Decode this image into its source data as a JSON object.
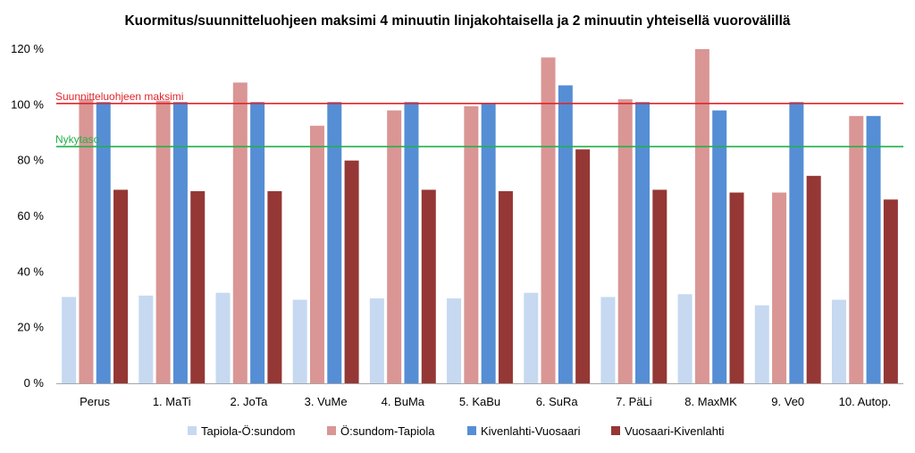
{
  "chart_data": {
    "type": "bar",
    "title": "Kuormitus/suunnitteluohjeen maksimi 4 minuutin linjakohtaisella ja 2 minuutin yhteisellä vuorovälillä",
    "xlabel": "",
    "ylabel": "",
    "ylim": [
      0,
      120
    ],
    "yticks": [
      "0 %",
      "20 %",
      "40 %",
      "60 %",
      "80 %",
      "100 %",
      "120 %"
    ],
    "grid": false,
    "legend_position": "bottom",
    "categories": [
      "Perus",
      "1. MaTi",
      "2. JoTa",
      "3. VuMe",
      "4. BuMa",
      "5. KaBu",
      "6. SuRa",
      "7. PäLi",
      "8. MaxMK",
      "9. Ve0",
      "10. Autop."
    ],
    "series": [
      {
        "name": "Tapiola-Ö:sundom",
        "color": "#c6d9f1",
        "values": [
          31,
          31.5,
          32.5,
          30,
          30.5,
          30.5,
          32.5,
          31,
          32,
          28,
          30
        ]
      },
      {
        "name": "Ö:sundom-Tapiola",
        "color": "#d99694",
        "values": [
          102,
          101.5,
          108,
          92.5,
          98,
          99.5,
          117,
          102,
          120,
          68.5,
          96
        ]
      },
      {
        "name": "Kivenlahti-Vuosaari",
        "color": "#558ed5",
        "values": [
          101,
          101,
          101,
          101,
          101,
          100.5,
          107,
          101,
          98,
          101,
          96
        ]
      },
      {
        "name": "Vuosaari-Kivenlahti",
        "color": "#953735",
        "values": [
          69.5,
          69,
          69,
          80,
          69.5,
          69,
          84,
          69.5,
          68.5,
          74.5,
          66
        ]
      }
    ],
    "reference_lines": [
      {
        "label": "Suunnitteluohjeen maksimi",
        "value": 100.5,
        "color": "#e3242b"
      },
      {
        "label": "Nykytaso",
        "value": 85,
        "color": "#22b14c"
      }
    ]
  }
}
